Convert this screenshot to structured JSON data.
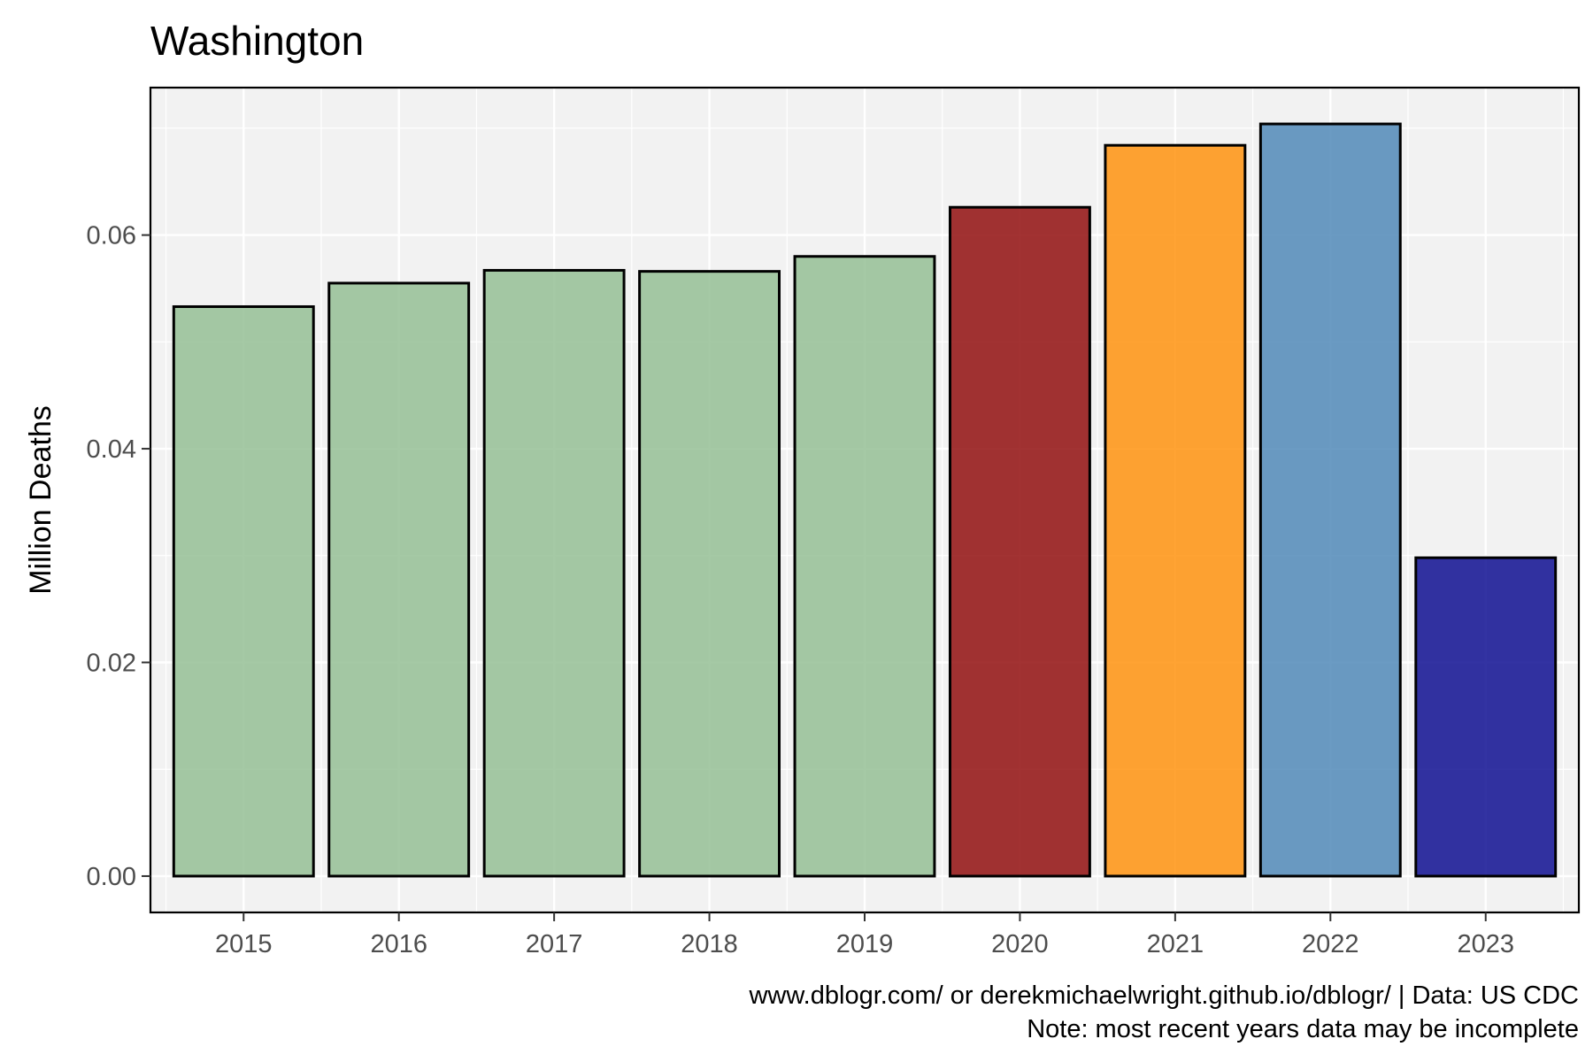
{
  "chart_data": {
    "type": "bar",
    "title": "Washington",
    "xlabel": "",
    "ylabel": "Million Deaths",
    "categories": [
      "2015",
      "2016",
      "2017",
      "2018",
      "2019",
      "2020",
      "2021",
      "2022",
      "2023"
    ],
    "values": [
      0.0533,
      0.0555,
      0.0567,
      0.0566,
      0.058,
      0.0626,
      0.0684,
      0.0704,
      0.0298
    ],
    "bar_colors": [
      "#8fbc8f",
      "#8fbc8f",
      "#8fbc8f",
      "#8fbc8f",
      "#8fbc8f",
      "#8b0000",
      "#ff8c00",
      "#4682b4",
      "#00008b"
    ],
    "bar_opacity": 0.8,
    "ylim": [
      -0.0034,
      0.0738
    ],
    "yticks": [
      "0.00",
      "0.02",
      "0.04",
      "0.06"
    ],
    "ytick_values": [
      0,
      0.02,
      0.04,
      0.06
    ],
    "grid": true,
    "legend": "none",
    "caption_lines": [
      "www.dblogr.com/ or derekmichaelwright.github.io/dblogr/ | Data: US CDC",
      "Note: most recent years data may be incomplete"
    ]
  }
}
